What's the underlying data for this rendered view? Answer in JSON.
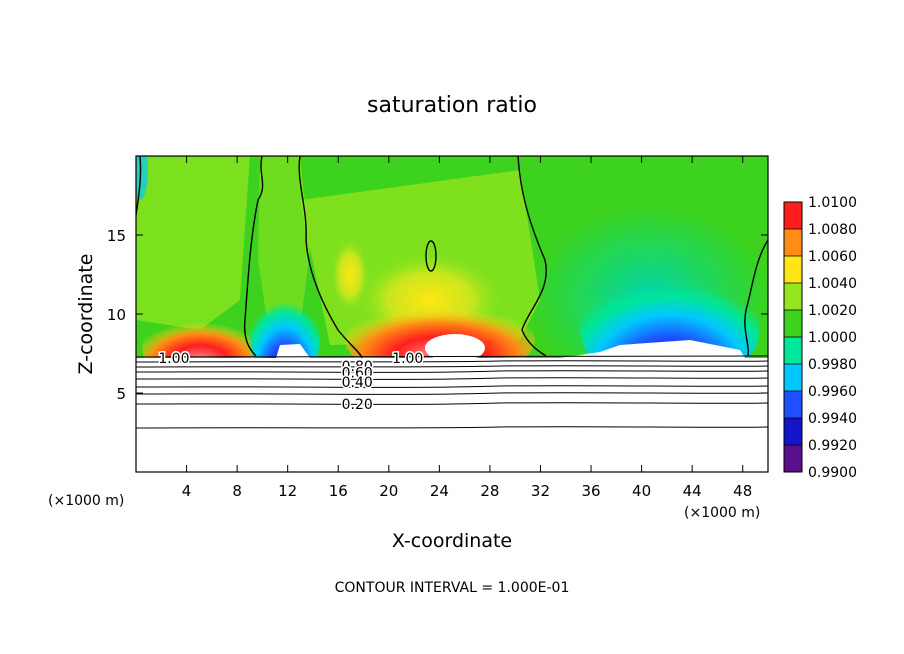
{
  "chart_data": {
    "type": "heatmap",
    "title": "saturation ratio",
    "xlabel": "X-coordinate",
    "ylabel": "Z-coordinate",
    "x_unit": "(×1000 m)",
    "x_unit_right": "(×1000 m)",
    "xlim": [
      0,
      50
    ],
    "ylim": [
      0,
      20
    ],
    "x_ticks": [
      4,
      8,
      12,
      16,
      20,
      24,
      28,
      32,
      36,
      40,
      44,
      48
    ],
    "y_ticks": [
      5,
      10,
      15
    ],
    "colorbar": {
      "levels": [
        0.99,
        0.992,
        0.994,
        0.996,
        0.998,
        1.0,
        1.002,
        1.004,
        1.006,
        1.008,
        1.01
      ],
      "labels": [
        "0.9900",
        "0.9920",
        "0.9940",
        "0.9960",
        "0.9980",
        "1.0000",
        "1.0020",
        "1.0040",
        "1.0060",
        "1.0080",
        "1.0100"
      ],
      "colors": [
        "#5a0f8c",
        "#1414c8",
        "#1e50ff",
        "#00c8ff",
        "#00e69a",
        "#3cd21e",
        "#96e61e",
        "#ffe614",
        "#ff8c14",
        "#ff1e1e",
        "#ff9696"
      ]
    },
    "contour_labels": [
      {
        "text": "1.00",
        "x": 3.0,
        "z": 7.2
      },
      {
        "text": "1.00",
        "x": 21.5,
        "z": 7.2
      },
      {
        "text": "0.80",
        "x": 17.5,
        "z": 6.7
      },
      {
        "text": "0.60",
        "x": 17.5,
        "z": 6.3
      },
      {
        "text": "0.40",
        "x": 17.5,
        "z": 5.7
      },
      {
        "text": "0.20",
        "x": 17.5,
        "z": 4.3
      }
    ],
    "footer": "CONTOUR INTERVAL = 1.000E-01"
  }
}
